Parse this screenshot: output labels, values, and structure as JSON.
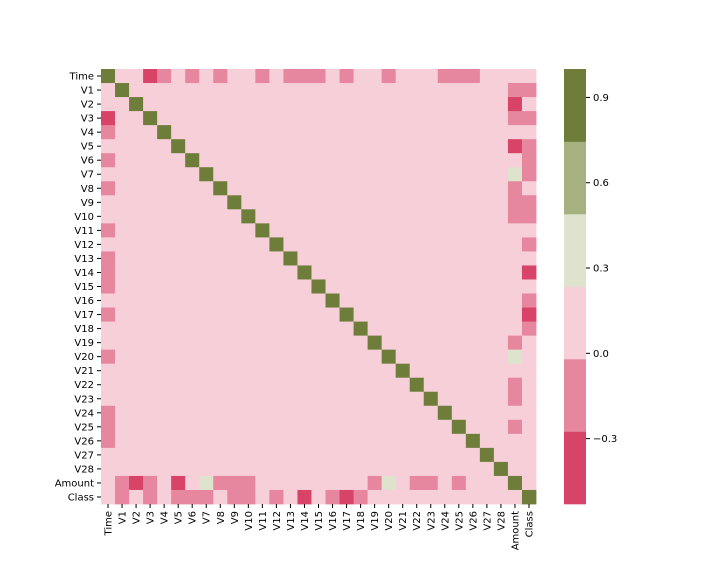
{
  "chart_data": {
    "type": "heatmap",
    "title": "",
    "xlabel": "",
    "ylabel": "",
    "labels": [
      "Time",
      "V1",
      "V2",
      "V3",
      "V4",
      "V5",
      "V6",
      "V7",
      "V8",
      "V9",
      "V10",
      "V11",
      "V12",
      "V13",
      "V14",
      "V15",
      "V16",
      "V17",
      "V18",
      "V19",
      "V20",
      "V21",
      "V22",
      "V23",
      "V24",
      "V25",
      "V26",
      "V27",
      "V28",
      "Amount",
      "Class"
    ],
    "color_scale": {
      "vmin": -0.53,
      "vmax": 1.0,
      "bins": [
        {
          "from": -0.53,
          "to": -0.275,
          "color": "#d84368"
        },
        {
          "from": -0.275,
          "to": -0.02,
          "color": "#e6879f"
        },
        {
          "from": -0.02,
          "to": 0.235,
          "color": "#f6cfd8"
        },
        {
          "from": 0.235,
          "to": 0.49,
          "color": "#dee3cd"
        },
        {
          "from": 0.49,
          "to": 0.745,
          "color": "#a5b17f"
        },
        {
          "from": 0.745,
          "to": 1.0,
          "color": "#6e7e3a"
        }
      ],
      "ticks": [
        -0.3,
        0.0,
        0.3,
        0.6,
        0.9
      ],
      "tick_labels": [
        "−0.3",
        "0.0",
        "0.3",
        "0.6",
        "0.9"
      ]
    },
    "matrix": [
      [
        1,
        0.12,
        -0.01,
        -0.42,
        -0.11,
        0.17,
        -0.06,
        0.08,
        -0.04,
        -0.01,
        0.03,
        -0.25,
        0.12,
        -0.07,
        -0.1,
        -0.18,
        0.01,
        -0.07,
        0.09,
        0.03,
        -0.05,
        0.04,
        0.14,
        0.05,
        -0.02,
        -0.23,
        -0.04,
        -0.01,
        -0.01,
        -0.01,
        -0.01
      ],
      [
        0.12,
        1,
        0,
        0,
        0,
        0,
        0,
        0,
        0,
        0,
        0,
        0,
        0,
        0,
        0,
        0,
        0,
        0,
        0,
        0,
        0,
        0,
        0,
        0,
        0,
        0,
        0,
        0,
        0,
        -0.23,
        -0.1
      ],
      [
        -0.01,
        0,
        1,
        0,
        0,
        0,
        0,
        0,
        0,
        0,
        0,
        0,
        0,
        0,
        0,
        0,
        0,
        0,
        0,
        0,
        0,
        0,
        0,
        0,
        0,
        0,
        0,
        0,
        0,
        -0.53,
        0.09
      ],
      [
        -0.42,
        0,
        0,
        1,
        0,
        0,
        0,
        0,
        0,
        0,
        0,
        0,
        0,
        0,
        0,
        0,
        0,
        0,
        0,
        0,
        0,
        0,
        0,
        0,
        0,
        0,
        0,
        0,
        0,
        -0.21,
        -0.19
      ],
      [
        -0.11,
        0,
        0,
        0,
        1,
        0,
        0,
        0,
        0,
        0,
        0,
        0,
        0,
        0,
        0,
        0,
        0,
        0,
        0,
        0,
        0,
        0,
        0,
        0,
        0,
        0,
        0,
        0,
        0,
        0.1,
        0.13
      ],
      [
        0.17,
        0,
        0,
        0,
        0,
        1,
        0,
        0,
        0,
        0,
        0,
        0,
        0,
        0,
        0,
        0,
        0,
        0,
        0,
        0,
        0,
        0,
        0,
        0,
        0,
        0,
        0,
        0,
        0,
        -0.39,
        -0.09
      ],
      [
        -0.06,
        0,
        0,
        0,
        0,
        0,
        1,
        0,
        0,
        0,
        0,
        0,
        0,
        0,
        0,
        0,
        0,
        0,
        0,
        0,
        0,
        0,
        0,
        0,
        0,
        0,
        0,
        0,
        0,
        0.22,
        -0.04
      ],
      [
        0.08,
        0,
        0,
        0,
        0,
        0,
        0,
        1,
        0,
        0,
        0,
        0,
        0,
        0,
        0,
        0,
        0,
        0,
        0,
        0,
        0,
        0,
        0,
        0,
        0,
        0,
        0,
        0,
        0,
        0.4,
        -0.19
      ],
      [
        -0.04,
        0,
        0,
        0,
        0,
        0,
        0,
        0,
        1,
        0,
        0,
        0,
        0,
        0,
        0,
        0,
        0,
        0,
        0,
        0,
        0,
        0,
        0,
        0,
        0,
        0,
        0,
        0,
        0,
        -0.1,
        0.02
      ],
      [
        -0.01,
        0,
        0,
        0,
        0,
        0,
        0,
        0,
        0,
        1,
        0,
        0,
        0,
        0,
        0,
        0,
        0,
        0,
        0,
        0,
        0,
        0,
        0,
        0,
        0,
        0,
        0,
        0,
        0,
        -0.04,
        -0.1
      ],
      [
        0.03,
        0,
        0,
        0,
        0,
        0,
        0,
        0,
        0,
        0,
        1,
        0,
        0,
        0,
        0,
        0,
        0,
        0,
        0,
        0,
        0,
        0,
        0,
        0,
        0,
        0,
        0,
        0,
        0,
        -0.1,
        -0.22
      ],
      [
        -0.25,
        0,
        0,
        0,
        0,
        0,
        0,
        0,
        0,
        0,
        0,
        1,
        0,
        0,
        0,
        0,
        0,
        0,
        0,
        0,
        0,
        0,
        0,
        0,
        0,
        0,
        0,
        0,
        0,
        0,
        0.15
      ],
      [
        0.12,
        0,
        0,
        0,
        0,
        0,
        0,
        0,
        0,
        0,
        0,
        0,
        1,
        0,
        0,
        0,
        0,
        0,
        0,
        0,
        0,
        0,
        0,
        0,
        0,
        0,
        0,
        0,
        0,
        -0.01,
        -0.26
      ],
      [
        -0.07,
        0,
        0,
        0,
        0,
        0,
        0,
        0,
        0,
        0,
        0,
        0,
        0,
        1,
        0,
        0,
        0,
        0,
        0,
        0,
        0,
        0,
        0,
        0,
        0,
        0,
        0,
        0,
        0,
        0.01,
        0
      ],
      [
        -0.1,
        0,
        0,
        0,
        0,
        0,
        0,
        0,
        0,
        0,
        0,
        0,
        0,
        0,
        1,
        0,
        0,
        0,
        0,
        0,
        0,
        0,
        0,
        0,
        0,
        0,
        0,
        0,
        0,
        0.03,
        -0.3
      ],
      [
        -0.18,
        0,
        0,
        0,
        0,
        0,
        0,
        0,
        0,
        0,
        0,
        0,
        0,
        0,
        0,
        1,
        0,
        0,
        0,
        0,
        0,
        0,
        0,
        0,
        0,
        0,
        0,
        0,
        0,
        0,
        0
      ],
      [
        0.01,
        0,
        0,
        0,
        0,
        0,
        0,
        0,
        0,
        0,
        0,
        0,
        0,
        0,
        0,
        0,
        1,
        0,
        0,
        0,
        0,
        0,
        0,
        0,
        0,
        0,
        0,
        0,
        0,
        0,
        -0.2
      ],
      [
        -0.07,
        0,
        0,
        0,
        0,
        0,
        0,
        0,
        0,
        0,
        0,
        0,
        0,
        0,
        0,
        0,
        0,
        1,
        0,
        0,
        0,
        0,
        0,
        0,
        0,
        0,
        0,
        0,
        0,
        0.01,
        -0.33
      ],
      [
        0.09,
        0,
        0,
        0,
        0,
        0,
        0,
        0,
        0,
        0,
        0,
        0,
        0,
        0,
        0,
        0,
        0,
        0,
        1,
        0,
        0,
        0,
        0,
        0,
        0,
        0,
        0,
        0,
        0,
        0.04,
        -0.11
      ],
      [
        0.03,
        0,
        0,
        0,
        0,
        0,
        0,
        0,
        0,
        0,
        0,
        0,
        0,
        0,
        0,
        0,
        0,
        0,
        0,
        1,
        0,
        0,
        0,
        0,
        0,
        0,
        0,
        0,
        0,
        -0.06,
        0.03
      ],
      [
        -0.05,
        0,
        0,
        0,
        0,
        0,
        0,
        0,
        0,
        0,
        0,
        0,
        0,
        0,
        0,
        0,
        0,
        0,
        0,
        0,
        1,
        0,
        0,
        0,
        0,
        0,
        0,
        0,
        0,
        0.34,
        0.02
      ],
      [
        0.04,
        0,
        0,
        0,
        0,
        0,
        0,
        0,
        0,
        0,
        0,
        0,
        0,
        0,
        0,
        0,
        0,
        0,
        0,
        0,
        0,
        1,
        0,
        0,
        0,
        0,
        0,
        0,
        0,
        0.11,
        0.04
      ],
      [
        0.14,
        0,
        0,
        0,
        0,
        0,
        0,
        0,
        0,
        0,
        0,
        0,
        0,
        0,
        0,
        0,
        0,
        0,
        0,
        0,
        0,
        0,
        1,
        0,
        0,
        0,
        0,
        0,
        0,
        -0.06,
        0
      ],
      [
        0.05,
        0,
        0,
        0,
        0,
        0,
        0,
        0,
        0,
        0,
        0,
        0,
        0,
        0,
        0,
        0,
        0,
        0,
        0,
        0,
        0,
        0,
        0,
        1,
        0,
        0,
        0,
        0,
        0,
        -0.11,
        0
      ],
      [
        -0.02,
        0,
        0,
        0,
        0,
        0,
        0,
        0,
        0,
        0,
        0,
        0,
        0,
        0,
        0,
        0,
        0,
        0,
        0,
        0,
        0,
        0,
        0,
        0,
        1,
        0,
        0,
        0,
        0,
        0.01,
        -0.01
      ],
      [
        -0.23,
        0,
        0,
        0,
        0,
        0,
        0,
        0,
        0,
        0,
        0,
        0,
        0,
        0,
        0,
        0,
        0,
        0,
        0,
        0,
        0,
        0,
        0,
        0,
        0,
        1,
        0,
        0,
        0,
        -0.05,
        0
      ],
      [
        -0.04,
        0,
        0,
        0,
        0,
        0,
        0,
        0,
        0,
        0,
        0,
        0,
        0,
        0,
        0,
        0,
        0,
        0,
        0,
        0,
        0,
        0,
        0,
        0,
        0,
        0,
        1,
        0,
        0,
        0,
        0
      ],
      [
        -0.01,
        0,
        0,
        0,
        0,
        0,
        0,
        0,
        0,
        0,
        0,
        0,
        0,
        0,
        0,
        0,
        0,
        0,
        0,
        0,
        0,
        0,
        0,
        0,
        0,
        0,
        0,
        1,
        0,
        0.03,
        0.02
      ],
      [
        -0.01,
        0,
        0,
        0,
        0,
        0,
        0,
        0,
        0,
        0,
        0,
        0,
        0,
        0,
        0,
        0,
        0,
        0,
        0,
        0,
        0,
        0,
        0,
        0,
        0,
        0,
        0,
        0,
        1,
        0.01,
        0.01
      ],
      [
        -0.01,
        -0.23,
        -0.53,
        -0.21,
        0.1,
        -0.39,
        0.22,
        0.4,
        -0.1,
        -0.04,
        -0.1,
        0,
        -0.01,
        0.01,
        0.03,
        0,
        0,
        0.01,
        0.04,
        -0.06,
        0.34,
        0.11,
        -0.06,
        -0.11,
        0.01,
        -0.05,
        0,
        0.03,
        0.01,
        1,
        0.01
      ],
      [
        -0.01,
        -0.1,
        0.09,
        -0.19,
        0.13,
        -0.09,
        -0.04,
        -0.19,
        0.02,
        -0.1,
        -0.22,
        0.15,
        -0.26,
        0,
        -0.3,
        0,
        -0.2,
        -0.33,
        -0.11,
        0.03,
        0.02,
        0.04,
        0,
        0,
        -0.01,
        0,
        0,
        0.02,
        0.01,
        0.01,
        1
      ]
    ]
  }
}
